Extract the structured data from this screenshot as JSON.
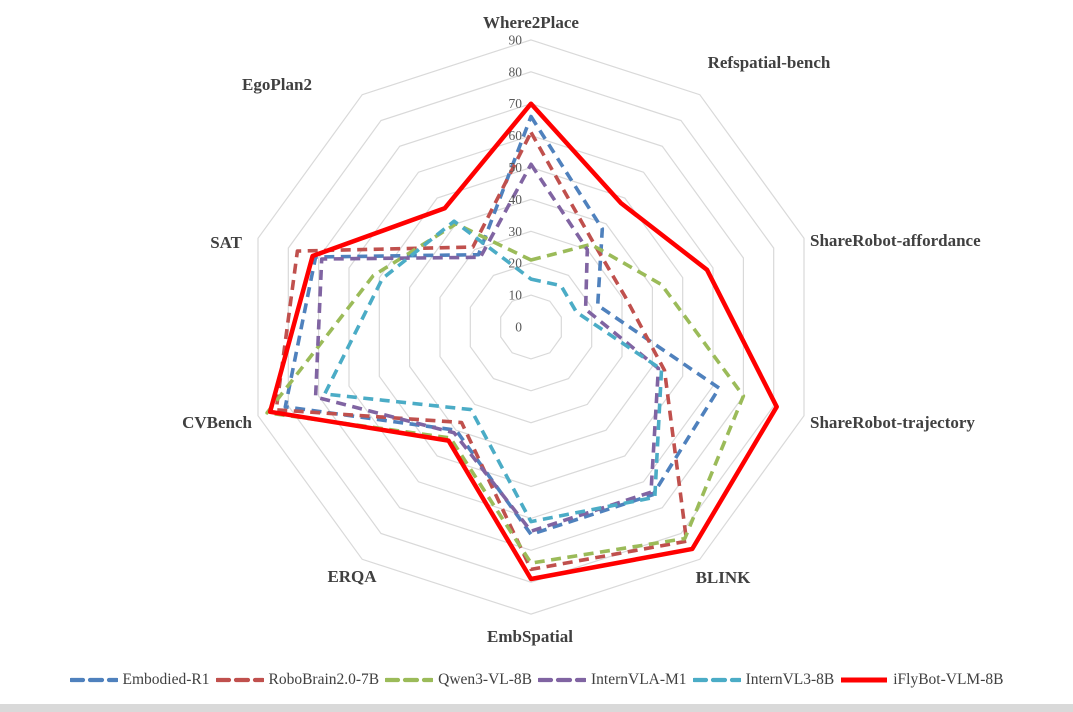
{
  "chart_data": {
    "type": "radar",
    "title": "",
    "axes": [
      "Where2Place",
      "Refspatial-bench",
      "ShareRobot-affordance",
      "ShareRobot-trajectory",
      "BLINK",
      "EmbSpatial",
      "ERQA",
      "CVBench",
      "SAT",
      "EgoPlan2"
    ],
    "rmin": 0,
    "rmax": 90,
    "ticks": [
      0,
      10,
      20,
      30,
      40,
      50,
      60,
      70,
      80,
      90
    ],
    "grid": "on",
    "legend_position": "bottom",
    "series": [
      {
        "name": "Embodied-R1",
        "color": "#4F81BD",
        "style": "dashed",
        "values": [
          66,
          38,
          22,
          62,
          65,
          65,
          40,
          81,
          71,
          28
        ]
      },
      {
        "name": "RoboBrain2.0-7B",
        "color": "#C0504D",
        "style": "dashed",
        "values": [
          61,
          33,
          31,
          44,
          83,
          76,
          37,
          84,
          77,
          31
        ]
      },
      {
        "name": "Qwen3-VL-8B",
        "color": "#9BBB59",
        "style": "dashed",
        "values": [
          21,
          32,
          43,
          70,
          82,
          74,
          43,
          87,
          52,
          40
        ]
      },
      {
        "name": "InternVLA-M1",
        "color": "#8064A2",
        "style": "dashed",
        "values": [
          51,
          30,
          18,
          42,
          64,
          64,
          41,
          71,
          69,
          27
        ]
      },
      {
        "name": "InternVL3-8B",
        "color": "#4BACC6",
        "style": "dashed",
        "values": [
          15,
          16,
          15,
          43,
          66,
          61,
          32,
          68,
          49,
          41
        ]
      },
      {
        "name": "iFlyBot-VLM-8B",
        "color": "#FF0000",
        "style": "solid",
        "values": [
          70,
          48,
          58,
          81,
          86,
          79,
          44,
          86,
          72,
          46
        ]
      }
    ]
  },
  "colors": {
    "gridline": "#D9D9D9",
    "category_label": "#404040",
    "tick_label": "#595959",
    "bottom_bar": "#D9D9D9"
  }
}
